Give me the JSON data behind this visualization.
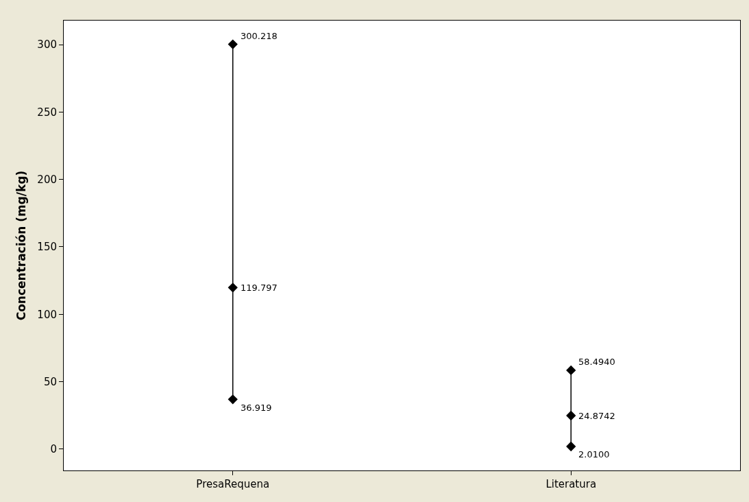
{
  "chart_data": {
    "type": "line",
    "ylabel": "Concentración (mg/kg)",
    "categories": [
      "PresaRequena",
      "Literatura"
    ],
    "ylim": [
      -15.8,
      317.8
    ],
    "yticks": [
      0,
      50,
      100,
      150,
      200,
      250,
      300
    ],
    "grid": false,
    "marker": "diamond",
    "line_style": "solid",
    "series": [
      {
        "x": [
          "PresaRequena",
          "PresaRequena",
          "PresaRequena"
        ],
        "color": "#000000",
        "values": [
          36.919,
          119.797,
          300.218
        ],
        "value_labels": [
          "36.919",
          "119.797",
          "300.218"
        ]
      },
      {
        "x": [
          "Literatura",
          "Literatura",
          "Literatura"
        ],
        "color": "#000000",
        "values": [
          2.01,
          24.8742,
          58.494
        ],
        "value_labels": [
          "2.0100",
          "24.8742",
          "58.4940"
        ]
      }
    ]
  }
}
